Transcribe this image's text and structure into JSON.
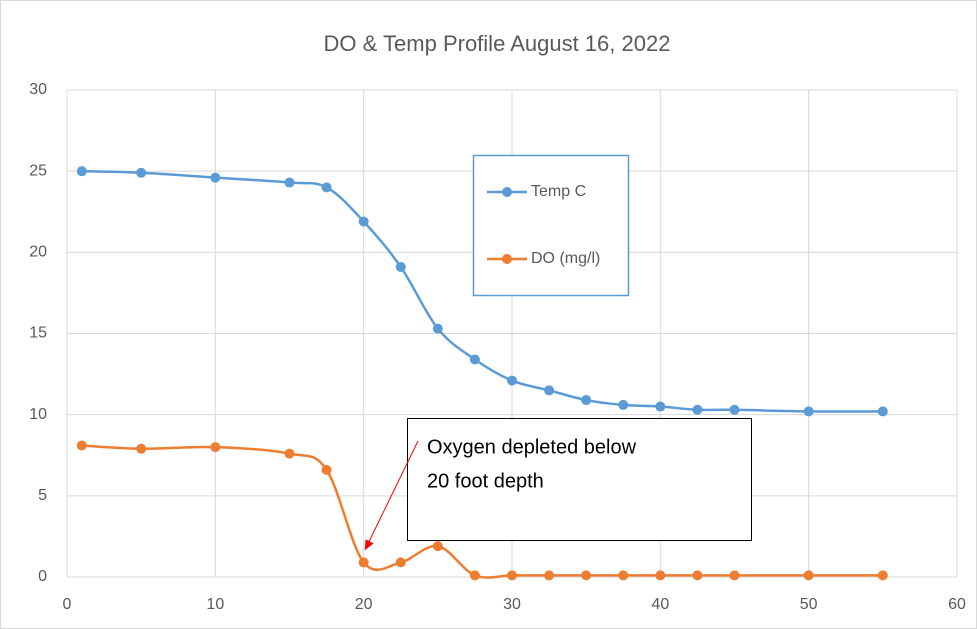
{
  "chart_data": {
    "type": "line",
    "title": "DO & Temp Profile August 16, 2022",
    "x": [
      1,
      5,
      10,
      15,
      17.5,
      20,
      22.5,
      25,
      27.5,
      30,
      32.5,
      35,
      37.5,
      40,
      42.5,
      45,
      50,
      55
    ],
    "series": [
      {
        "name": "Temp C",
        "color": "#5b9bd5",
        "values": [
          25,
          24.9,
          24.6,
          24.3,
          24.0,
          21.9,
          19.1,
          15.3,
          13.4,
          12.1,
          11.5,
          10.9,
          10.6,
          10.5,
          10.3,
          10.3,
          10.2,
          10.2
        ]
      },
      {
        "name": "DO (mg/l)",
        "color": "#ed7d31",
        "values": [
          8.1,
          7.9,
          8.0,
          7.6,
          6.6,
          0.9,
          0.9,
          1.9,
          0.1,
          0.1,
          0.1,
          0.1,
          0.1,
          0.1,
          0.1,
          0.1,
          0.1,
          0.1
        ]
      }
    ],
    "xlim": [
      0,
      60
    ],
    "xticks": [
      0,
      10,
      20,
      30,
      40,
      50,
      60
    ],
    "ylim": [
      0,
      30
    ],
    "yticks": [
      0,
      5,
      10,
      15,
      20,
      25,
      30
    ],
    "grid": true,
    "smooth": true,
    "annotation": {
      "lines": [
        "Oxygen depleted below",
        "20 foot depth"
      ],
      "x": 20,
      "y": 0.9,
      "color": "#ff0000"
    }
  }
}
